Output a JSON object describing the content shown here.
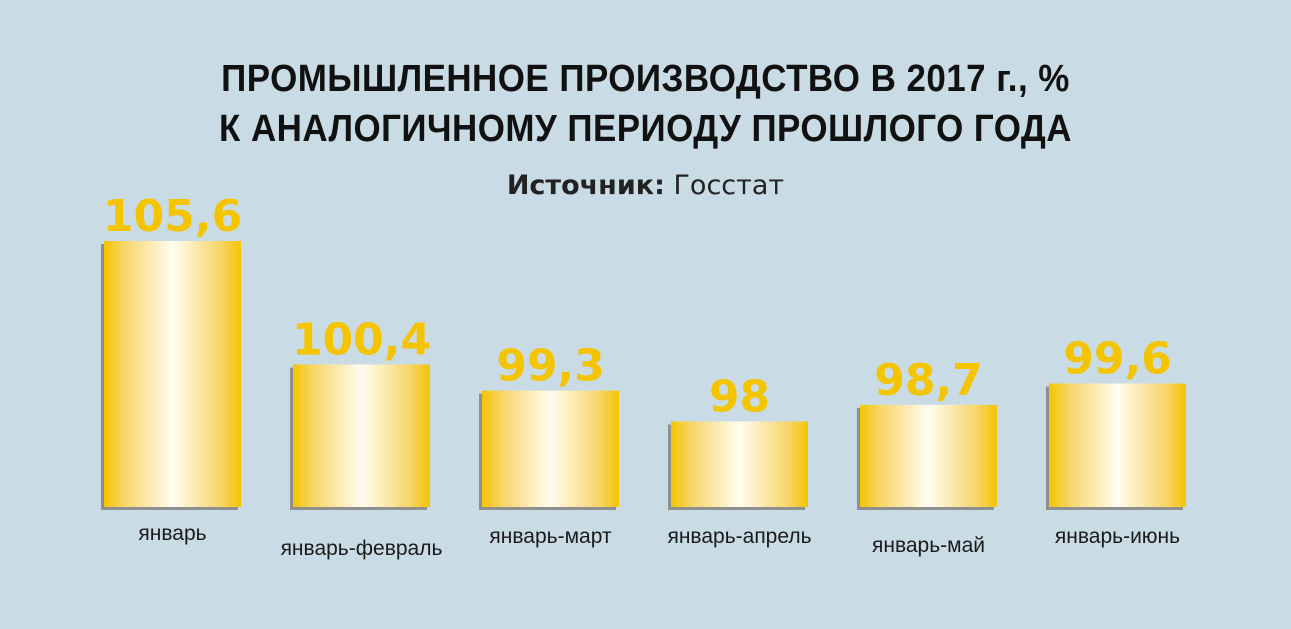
{
  "chart_data": {
    "type": "bar",
    "title": [
      "ПРОМЫШЛЕННОЕ ПРОИЗВОДСТВО В 2017 г., %",
      "К АНАЛОГИЧНОМУ ПЕРИОДУ ПРОШЛОГО ГОДА"
    ],
    "source_label": "Источник:",
    "source_value": "Госстат",
    "categories": [
      "январь",
      "январь-февраль",
      "январь-март",
      "январь-апрель",
      "январь-май",
      "январь-июнь"
    ],
    "values": [
      105.6,
      100.4,
      99.3,
      98,
      98.7,
      99.6
    ],
    "data_labels": [
      "105,6",
      "100,4",
      "99,3",
      "98",
      "98,7",
      "99,6"
    ],
    "ylim": [
      94.4,
      105.6
    ],
    "grid": false,
    "colors": {
      "background": "#c9dce6",
      "bar_edge": "#f5c400",
      "bar_center": "#fffdf0",
      "value_label": "#f5c400",
      "shadow": "#8f8f8f"
    }
  }
}
